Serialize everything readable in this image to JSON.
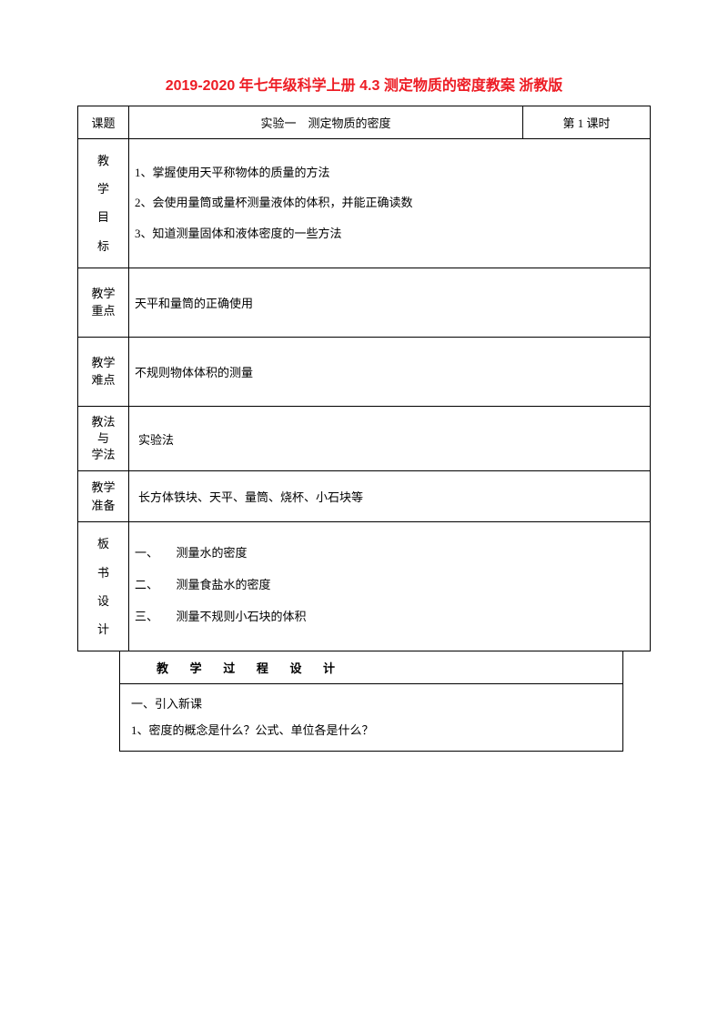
{
  "title": "2019-2020 年七年级科学上册 4.3 测定物质的密度教案 浙教版",
  "labels": {
    "topic": "课题",
    "objectives_chars": [
      "教",
      "学",
      "目",
      "标"
    ],
    "keypoint": "教学\n重点",
    "difficulty": "教学\n难点",
    "method": "教法\n与\n学法",
    "prep": "教学\n准备",
    "board_chars": [
      "板",
      "书",
      "设",
      "计"
    ]
  },
  "topic_text": "实验一　测定物质的密度",
  "period_text": "第 1 课时",
  "objectives": [
    "1、掌握使用天平称物体的质量的方法",
    "2、会使用量筒或量杯测量液体的体积，并能正确读数",
    "3、知道测量固体和液体密度的一些方法"
  ],
  "keypoint_text": "天平和量筒的正确使用",
  "difficulty_text": "不规则物体体积的测量",
  "method_text": "实验法",
  "prep_text": "长方体铁块、天平、量筒、烧杯、小石块等",
  "board_items": [
    "一、　　测量水的密度",
    "二、　　测量食盐水的密度",
    "三、　　测量不规则小石块的体积"
  ],
  "process_header": "教 学 过 程 设 计",
  "process_body": [
    "一、引入新课",
    "1、密度的概念是什么？公式、单位各是什么？"
  ],
  "colors": {
    "title": "#ed1c24",
    "border": "#000000",
    "text": "#000000",
    "background": "#ffffff"
  },
  "fonts": {
    "title_size": 16,
    "body_size": 13
  }
}
